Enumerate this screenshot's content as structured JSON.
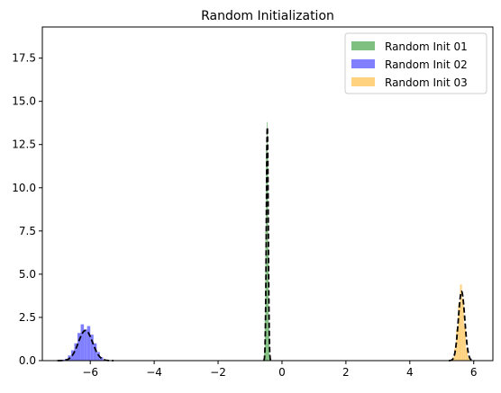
{
  "chart_data": {
    "type": "histogram",
    "title": "Random Initialization",
    "xlabel": "",
    "ylabel": "",
    "xlim": [
      -7.5,
      6.6
    ],
    "ylim": [
      0,
      19.3
    ],
    "xticks": [
      -6,
      -4,
      -2,
      0,
      2,
      4,
      6
    ],
    "xtick_labels": [
      "−6",
      "−4",
      "−2",
      "0",
      "2",
      "4",
      "6"
    ],
    "yticks": [
      0.0,
      2.5,
      5.0,
      7.5,
      10.0,
      12.5,
      15.0,
      17.5
    ],
    "ytick_labels": [
      "0.0",
      "2.5",
      "5.0",
      "7.5",
      "10.0",
      "12.5",
      "15.0",
      "17.5"
    ],
    "grid": false,
    "legend_position": "top-right",
    "series": [
      {
        "name": "Random Init 01",
        "color": "#7fbf7f",
        "density_curve": {
          "mean": -0.46,
          "std": 0.03,
          "peak": 13.5
        },
        "bins": {
          "x": [
            -0.55,
            -0.53,
            -0.51,
            -0.49,
            -0.47,
            -0.45,
            -0.43,
            -0.41,
            -0.39
          ],
          "y": [
            0.5,
            2.5,
            7.5,
            12.5,
            13.8,
            12.0,
            6.5,
            2.0,
            0.4
          ]
        }
      },
      {
        "name": "Random Init 02",
        "color": "#7f7fff",
        "density_curve": {
          "mean": -6.15,
          "std": 0.22,
          "peak": 1.75
        },
        "bins": {
          "x": [
            -6.85,
            -6.75,
            -6.65,
            -6.55,
            -6.45,
            -6.35,
            -6.25,
            -6.15,
            -6.05,
            -5.95,
            -5.85,
            -5.75,
            -5.65,
            -5.55
          ],
          "y": [
            0.05,
            0.1,
            0.3,
            0.6,
            1.0,
            1.6,
            2.1,
            1.8,
            2.0,
            1.5,
            1.0,
            0.5,
            0.2,
            0.05
          ]
        }
      },
      {
        "name": "Random Init 03",
        "color": "#ffd27f",
        "density_curve": {
          "mean": 5.62,
          "std": 0.1,
          "peak": 4.0
        },
        "bins": {
          "x": [
            5.36,
            5.42,
            5.48,
            5.54,
            5.6,
            5.66,
            5.72,
            5.78,
            5.84
          ],
          "y": [
            0.2,
            0.7,
            1.8,
            3.3,
            4.4,
            3.6,
            2.0,
            0.7,
            0.2
          ]
        }
      }
    ]
  }
}
